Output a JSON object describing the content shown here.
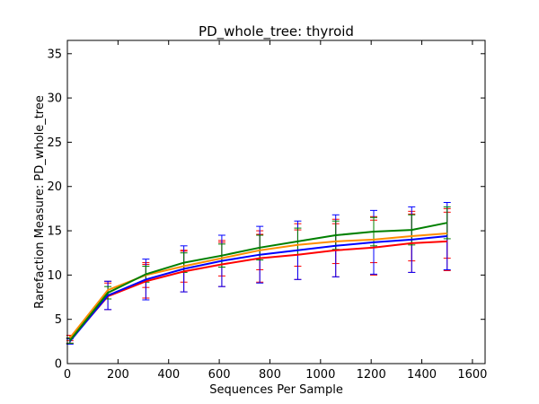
{
  "chart_data": {
    "type": "line",
    "title": "PD_whole_tree: thyroid",
    "xlabel": "Sequences Per Sample",
    "ylabel": "Rarefaction Measure: PD_whole_tree",
    "xlim": [
      0,
      1650
    ],
    "ylim": [
      0,
      36.5
    ],
    "xticks": [
      0,
      200,
      400,
      600,
      800,
      1000,
      1200,
      1400,
      1600
    ],
    "yticks": [
      0,
      5,
      10,
      15,
      20,
      25,
      30,
      35
    ],
    "grid": false,
    "legend": "none",
    "x": [
      10,
      160,
      310,
      460,
      610,
      760,
      910,
      1060,
      1210,
      1360,
      1500
    ],
    "series": [
      {
        "color": "#ff0000",
        "errorbar_color": "#ff0000",
        "values": [
          2.6,
          7.6,
          9.3,
          10.4,
          11.2,
          11.9,
          12.3,
          12.8,
          13.1,
          13.6,
          13.8
        ],
        "errors": [
          0.3,
          1.5,
          1.9,
          2.3,
          2.5,
          2.7,
          2.8,
          3.0,
          3.1,
          3.3,
          3.3
        ]
      },
      {
        "color": "#ff8c00",
        "errorbar_color": "#ff0000",
        "values": [
          2.9,
          8.3,
          10.0,
          11.0,
          11.9,
          12.8,
          13.4,
          13.8,
          14.0,
          14.4,
          14.7
        ],
        "errors": [
          0.3,
          1.0,
          1.4,
          1.8,
          2.0,
          2.2,
          2.4,
          2.5,
          2.6,
          2.8,
          2.8
        ]
      },
      {
        "color": "#0000ff",
        "errorbar_color": "#0000ff",
        "values": [
          2.5,
          7.7,
          9.5,
          10.7,
          11.6,
          12.3,
          12.8,
          13.3,
          13.7,
          14.0,
          14.4
        ],
        "errors": [
          0.3,
          1.6,
          2.3,
          2.6,
          2.9,
          3.2,
          3.3,
          3.5,
          3.6,
          3.7,
          3.8
        ]
      },
      {
        "color": "#008000",
        "errorbar_color": "#008000",
        "values": [
          2.6,
          8.0,
          10.1,
          11.4,
          12.2,
          13.1,
          13.8,
          14.5,
          14.9,
          15.1,
          15.9
        ],
        "errors": [
          0.3,
          0.7,
          0.9,
          1.1,
          1.3,
          1.4,
          1.5,
          1.6,
          1.6,
          1.7,
          1.8
        ]
      }
    ]
  }
}
